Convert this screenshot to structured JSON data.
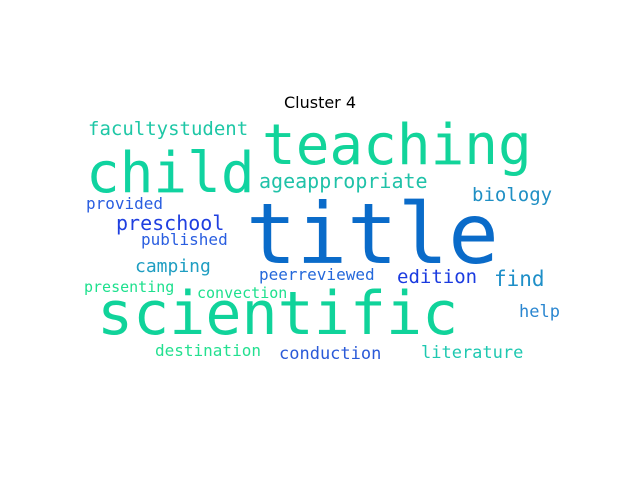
{
  "figure": {
    "title": "Cluster 4"
  },
  "words": [
    {
      "text": "title",
      "color": "#0a6bc9"
    },
    {
      "text": "scientific",
      "color": "#10d39a"
    },
    {
      "text": "teaching",
      "color": "#12d49a"
    },
    {
      "text": "child",
      "color": "#10d3a0"
    },
    {
      "text": "facultystudent",
      "color": "#1ec7a6"
    },
    {
      "text": "ageappropriate",
      "color": "#20c2a8"
    },
    {
      "text": "biology",
      "color": "#1f8fc4"
    },
    {
      "text": "provided",
      "color": "#2a5ee0"
    },
    {
      "text": "preschool",
      "color": "#1f3fe0"
    },
    {
      "text": "published",
      "color": "#2a5ee0"
    },
    {
      "text": "camping",
      "color": "#1f9ec2"
    },
    {
      "text": "peerreviewed",
      "color": "#2468da"
    },
    {
      "text": "edition",
      "color": "#1a3be0"
    },
    {
      "text": "find",
      "color": "#1e8fc8"
    },
    {
      "text": "presenting",
      "color": "#1ee08e"
    },
    {
      "text": "convection",
      "color": "#1ee08e"
    },
    {
      "text": "help",
      "color": "#2a86d0"
    },
    {
      "text": "destination",
      "color": "#24e090"
    },
    {
      "text": "conduction",
      "color": "#2a5ad8"
    },
    {
      "text": "literature",
      "color": "#1ec8b0"
    }
  ]
}
